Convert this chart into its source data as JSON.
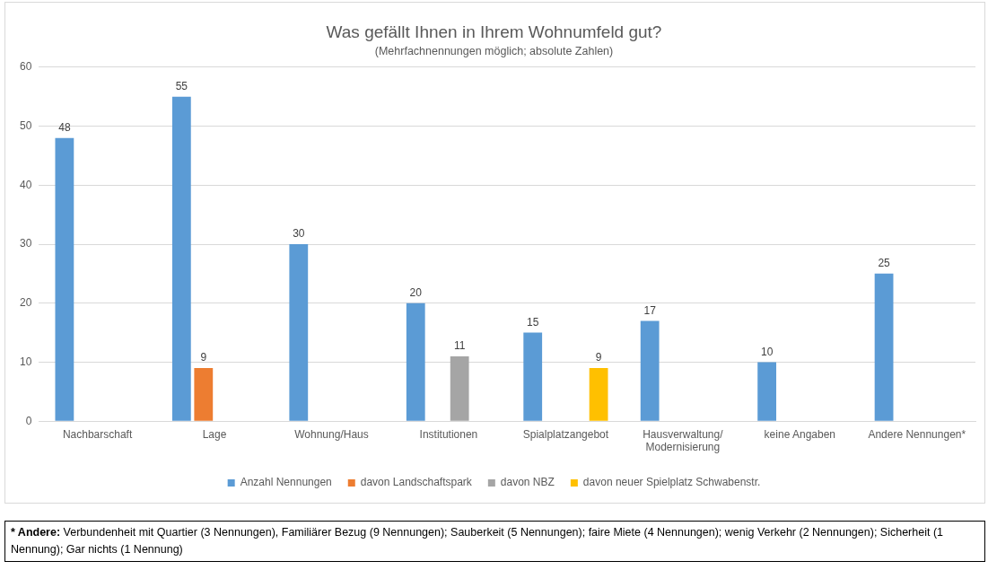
{
  "chart_data": {
    "type": "bar",
    "title": "Was gefällt Ihnen in Ihrem Wohnumfeld gut?",
    "subtitle": "(Mehrfachnennungen möglich; absolute Zahlen)",
    "categories": [
      "Nachbarschaft",
      "Lage",
      "Wohnung/Haus",
      "Institutionen",
      "Spialplatzangebot",
      "Hausverwaltung/ Modernisierung",
      "keine Angaben",
      "Andere Nennungen*"
    ],
    "series": [
      {
        "name": "Anzahl Nennungen",
        "color": "#5b9bd5",
        "values": [
          48,
          55,
          30,
          20,
          15,
          17,
          10,
          25
        ]
      },
      {
        "name": "davon Landschaftspark",
        "color": "#ed7d31",
        "values": [
          null,
          9,
          null,
          null,
          null,
          null,
          null,
          null
        ]
      },
      {
        "name": "davon NBZ",
        "color": "#a5a5a5",
        "values": [
          null,
          null,
          null,
          11,
          null,
          null,
          null,
          null
        ]
      },
      {
        "name": "davon neuer Spielplatz Schwabenstr.",
        "color": "#ffc000",
        "values": [
          null,
          null,
          null,
          null,
          9,
          null,
          null,
          null
        ]
      }
    ],
    "ylim": [
      0,
      60
    ],
    "yticks": [
      0,
      10,
      20,
      30,
      40,
      50,
      60
    ],
    "grid": "y",
    "legend": "bottom",
    "data_labels": true,
    "annotations": [
      "* Andere: Verbundenheit mit Quartier (3 Nennungen), Familiärer Bezug (9 Nennungen); Sauberkeit (5 Nennungen); faire Miete (4 Nennungen); wenig Verkehr (2 Nennungen); Sicherheit (1 Nennung); Gar nichts (1 Nennung)"
    ]
  }
}
